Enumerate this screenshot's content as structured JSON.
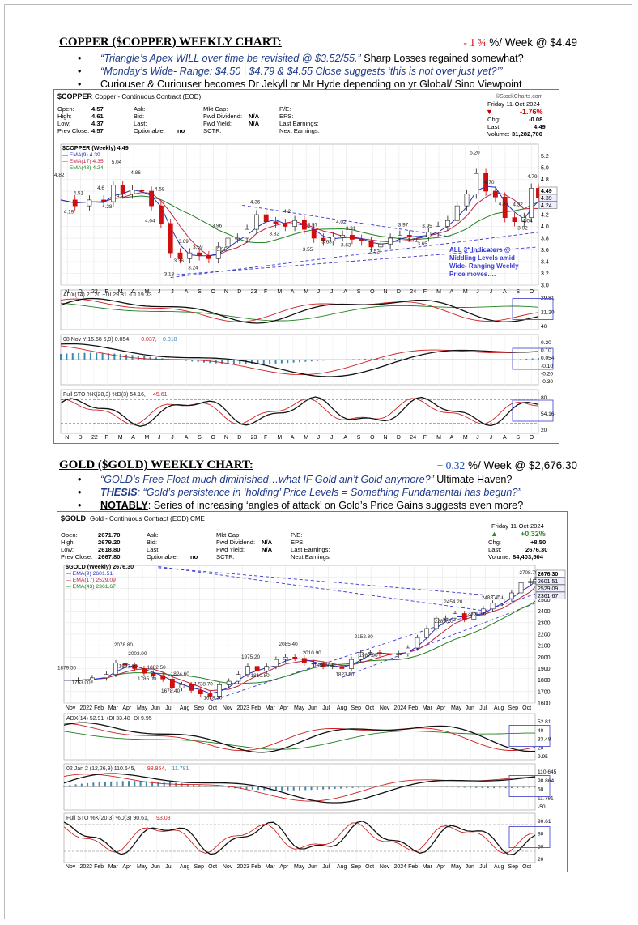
{
  "copper": {
    "title": "COPPER ($COPPER) WEEKLY CHART",
    "title_suffix": ":",
    "change_value": "- 1 ¾",
    "change_color": "#d01010",
    "change_rest": " %/ Week @ $4.49",
    "bullets": [
      {
        "italic": "“Triangle’s Apex WILL over time be revisited @ $3.52/55.”",
        "plain": "   Sharp Losses regained somewhat?"
      },
      {
        "italic": "“Monday’s Wide- Range: $4.50 | $4.79 & $4.55 Close suggests ‘this is not over just yet?’”",
        "plain": ""
      },
      {
        "italic": "",
        "plain": "Curiouser & Curiouser becomes Dr Jekyll or Mr Hyde depending on yr Global/ Sino Viewpoint"
      }
    ],
    "chart_header": {
      "symbol": "$COPPER",
      "desc": "Copper - Continuous Contract (EOD)",
      "brand": "©StockCharts.com",
      "col1": [
        [
          "Open:",
          "4.57"
        ],
        [
          "High:",
          "4.61"
        ],
        [
          "Low:",
          "4.37"
        ],
        [
          "Prev Close:",
          "4.57"
        ]
      ],
      "col2": [
        "Ask:",
        "Bid:",
        "Last:",
        "Optionable:"
      ],
      "optionable": "no",
      "col3": [
        [
          "Mkt Cap:",
          ""
        ],
        [
          "Fwd Dividend:",
          "N/A"
        ],
        [
          "Fwd Yield:",
          "N/A"
        ],
        [
          "SCTR:",
          ""
        ]
      ],
      "col4": [
        "P/E:",
        "EPS:",
        "Last Earnings:",
        "Next Earnings:"
      ],
      "date": "Friday  11-Oct-2024",
      "pct": "-1.76%",
      "chg_label": "Chg:",
      "chg": "-0.08",
      "last_label": "Last:",
      "last": "4.49",
      "vol_label": "Volume:",
      "vol": "31,282,700"
    },
    "legend": {
      "series": "$COPPER (Weekly) 4.49",
      "ema9": "EMA(9) 4.39",
      "ema17": "EMA(17) 4.35",
      "ema43": "EMA(43) 4.24"
    },
    "note": [
      "ALL 3* Indicators @",
      "Middling Levels amid",
      "Wide- Ranging Weekly",
      "Price moves…."
    ],
    "adx_label": "ADX(14) 21.20",
    "adx_di_plus": "+DI 29.81",
    "adx_di_minus": "-DI 19.33",
    "macd_label": "08 Nov Y:16.68 6,9) 0.054,",
    "macd_v1": "0.037,",
    "macd_v2": "0.018",
    "sto_label": "Full STO %K(20,3) %D(3) 54.16,",
    "sto_v2": "45.61",
    "x_labels": [
      "N",
      "D",
      "22",
      "F",
      "M",
      "A",
      "M",
      "J",
      "J",
      "A",
      "S",
      "O",
      "N",
      "D",
      "23",
      "F",
      "M",
      "A",
      "M",
      "J",
      "J",
      "A",
      "S",
      "O",
      "N",
      "D",
      "24",
      "F",
      "M",
      "A",
      "M",
      "J",
      "J",
      "A",
      "S",
      "O"
    ]
  },
  "gold": {
    "title": "GOLD ($GOLD) WEEKLY CHART:",
    "change_value": "+ 0.32",
    "change_color": "#1a4fb0",
    "change_rest": " %/ Week @ $2,676.30",
    "bullets": [
      {
        "lead": "",
        "italic": "“GOLD’s Free Float much diminished…what IF Gold ain’t Gold anymore?”",
        "plain": "     Ultimate Haven?"
      },
      {
        "lead": "THESIS",
        "italic": ": “Gold’s persistence in ‘holding’ Price Levels = Something Fundamental has begun?”",
        "plain": ""
      },
      {
        "lead": "NOTABLY",
        "italic": "",
        "plain": ": Series of increasing ‘angles of attack’ on Gold’s Price Gains suggests even more?"
      }
    ],
    "chart_header": {
      "symbol": "$GOLD",
      "desc": "Gold - Continuous Contract (EOD) CME",
      "col1": [
        [
          "Open:",
          "2671.70"
        ],
        [
          "High:",
          "2679.20"
        ],
        [
          "Low:",
          "2618.80"
        ],
        [
          "Prev Close:",
          "2667.80"
        ]
      ],
      "col2": [
        "Ask:",
        "Bid:",
        "Last:",
        "Optionable:"
      ],
      "optionable": "no",
      "col3": [
        [
          "Mkt Cap:",
          ""
        ],
        [
          "Fwd Dividend:",
          "N/A"
        ],
        [
          "Fwd Yield:",
          "N/A"
        ],
        [
          "SCTR:",
          ""
        ]
      ],
      "col4": [
        "P/E:",
        "EPS:",
        "Last Earnings:",
        "Next Earnings:"
      ],
      "date": "Friday  11-Oct-2024",
      "pct": "+0.32%",
      "chg_label": "Chg:",
      "chg": "+8.50",
      "last_label": "Last:",
      "last": "2676.30",
      "vol_label": "Volume:",
      "vol": "84,403,504"
    },
    "legend": {
      "series": "$GOLD (Weekly) 2676.30",
      "ema9": "EMA(9) 2601.51",
      "ema17": "EMA(17) 2529.09",
      "ema43": "EMA(43) 2361.67"
    },
    "adx_label": "ADX(14) 52.91",
    "adx_di_plus": "+DI 33.48",
    "adx_di_minus": "-DI 9.95",
    "macd_label": "02 Jan 2 (12,26,9) 110.645,",
    "macd_v1": "98.864,",
    "macd_v2": "11.781",
    "sto_label": "Full STO %K(20,3) %D(3) 90.61,",
    "sto_v2": "93.08",
    "x_labels": [
      "Nov",
      "2022",
      "Feb",
      "Mar",
      "Apr",
      "May",
      "Jun",
      "Jul",
      "Aug",
      "Sep",
      "Oct",
      "Nov",
      "2023",
      "Feb",
      "Mar",
      "Apr",
      "May",
      "Jun",
      "Jul",
      "Aug",
      "Sep",
      "Oct",
      "Nov",
      "2024",
      "Feb",
      "Mar",
      "Apr",
      "May",
      "Jun",
      "Jul",
      "Aug",
      "Sep",
      "Oct"
    ]
  },
  "chart_data": [
    {
      "type": "line",
      "title": "$COPPER (Weekly) 4.49",
      "ylim": [
        3.0,
        5.4
      ],
      "yticks": [
        "5.2",
        "5.0",
        "4.8",
        "4.6",
        "4.4",
        "4.2",
        "4.0",
        "3.8",
        "3.6",
        "3.4",
        "3.2",
        "3.0"
      ],
      "right_labels": [
        "4.49",
        "4.39",
        "4.24"
      ],
      "annotations": [
        {
          "t": 0.0,
          "v": 4.82,
          "label": "4.82"
        },
        {
          "t": 0.04,
          "v": 4.51,
          "label": "4.51"
        },
        {
          "t": 0.02,
          "v": 4.19,
          "label": "4.19"
        },
        {
          "t": 0.09,
          "v": 4.6,
          "label": "4.6"
        },
        {
          "t": 0.12,
          "v": 5.04,
          "label": "5.04"
        },
        {
          "t": 0.13,
          "v": 4.47,
          "label": "4.47"
        },
        {
          "t": 0.1,
          "v": 4.28,
          "label": "4.28"
        },
        {
          "t": 0.16,
          "v": 4.86,
          "label": "4.86"
        },
        {
          "t": 0.21,
          "v": 4.58,
          "label": "4.58"
        },
        {
          "t": 0.19,
          "v": 4.04,
          "label": "4.04"
        },
        {
          "t": 0.26,
          "v": 3.69,
          "label": "3.69"
        },
        {
          "t": 0.29,
          "v": 3.59,
          "label": "3.59"
        },
        {
          "t": 0.25,
          "v": 3.36,
          "label": "3.36"
        },
        {
          "t": 0.23,
          "v": 3.13,
          "label": "3.13"
        },
        {
          "t": 0.28,
          "v": 3.24,
          "label": "3.24"
        },
        {
          "t": 0.34,
          "v": 3.55,
          "label": "3.55"
        },
        {
          "t": 0.33,
          "v": 3.96,
          "label": "3.96"
        },
        {
          "t": 0.41,
          "v": 4.36,
          "label": "4.36"
        },
        {
          "t": 0.48,
          "v": 4.2,
          "label": "4.2"
        },
        {
          "t": 0.45,
          "v": 3.82,
          "label": "3.82"
        },
        {
          "t": 0.53,
          "v": 3.97,
          "label": "3.97"
        },
        {
          "t": 0.52,
          "v": 3.55,
          "label": "3.55"
        },
        {
          "t": 0.56,
          "v": 3.68,
          "label": "3.68"
        },
        {
          "t": 0.59,
          "v": 4.02,
          "label": "4.02"
        },
        {
          "t": 0.6,
          "v": 3.63,
          "label": "3.63"
        },
        {
          "t": 0.61,
          "v": 3.91,
          "label": "3.91"
        },
        {
          "t": 0.66,
          "v": 3.52,
          "label": "3.52"
        },
        {
          "t": 0.72,
          "v": 3.97,
          "label": "3.97"
        },
        {
          "t": 0.74,
          "v": 3.71,
          "label": "3.71"
        },
        {
          "t": 0.77,
          "v": 3.95,
          "label": "3.95"
        },
        {
          "t": 0.76,
          "v": 3.65,
          "label": "3.65"
        },
        {
          "t": 0.87,
          "v": 5.2,
          "label": "5.20"
        },
        {
          "t": 0.9,
          "v": 4.7,
          "label": "4.70"
        },
        {
          "t": 0.93,
          "v": 4.33,
          "label": "4.33"
        },
        {
          "t": 0.96,
          "v": 4.32,
          "label": "4.32"
        },
        {
          "t": 0.99,
          "v": 4.79,
          "label": "4.79"
        },
        {
          "t": 0.98,
          "v": 4.04,
          "label": "4.04"
        },
        {
          "t": 0.97,
          "v": 3.92,
          "label": "3.92"
        }
      ],
      "points": [
        [
          0.0,
          4.45
        ],
        [
          0.03,
          4.35
        ],
        [
          0.06,
          4.45
        ],
        [
          0.09,
          4.42
        ],
        [
          0.11,
          4.7
        ],
        [
          0.13,
          4.55
        ],
        [
          0.15,
          4.62
        ],
        [
          0.17,
          4.6
        ],
        [
          0.19,
          4.35
        ],
        [
          0.21,
          4.05
        ],
        [
          0.23,
          3.55
        ],
        [
          0.25,
          3.45
        ],
        [
          0.27,
          3.55
        ],
        [
          0.29,
          3.5
        ],
        [
          0.31,
          3.45
        ],
        [
          0.33,
          3.65
        ],
        [
          0.35,
          3.8
        ],
        [
          0.37,
          3.8
        ],
        [
          0.39,
          3.95
        ],
        [
          0.41,
          4.2
        ],
        [
          0.43,
          4.08
        ],
        [
          0.45,
          4.05
        ],
        [
          0.47,
          4.0
        ],
        [
          0.49,
          4.1
        ],
        [
          0.51,
          3.95
        ],
        [
          0.53,
          3.8
        ],
        [
          0.55,
          3.75
        ],
        [
          0.57,
          3.82
        ],
        [
          0.59,
          3.85
        ],
        [
          0.61,
          3.78
        ],
        [
          0.63,
          3.75
        ],
        [
          0.65,
          3.65
        ],
        [
          0.67,
          3.7
        ],
        [
          0.69,
          3.8
        ],
        [
          0.71,
          3.85
        ],
        [
          0.73,
          3.82
        ],
        [
          0.75,
          3.82
        ],
        [
          0.77,
          3.9
        ],
        [
          0.79,
          4.0
        ],
        [
          0.81,
          4.1
        ],
        [
          0.83,
          4.35
        ],
        [
          0.85,
          4.55
        ],
        [
          0.87,
          4.9
        ],
        [
          0.89,
          4.6
        ],
        [
          0.91,
          4.5
        ],
        [
          0.93,
          4.15
        ],
        [
          0.95,
          4.08
        ],
        [
          0.97,
          4.15
        ],
        [
          0.985,
          4.65
        ],
        [
          1.0,
          4.49
        ]
      ]
    },
    {
      "type": "line",
      "title": "$GOLD (Weekly) 2676.30",
      "ylim": [
        1600,
        2800
      ],
      "yticks": [
        "2700",
        "2600",
        "2500",
        "2400",
        "2300",
        "2200",
        "2100",
        "2000",
        "1900",
        "1800",
        "1700",
        "1600"
      ],
      "right_labels": [
        "2676.30",
        "2601.51",
        "2529.09",
        "2361.67"
      ],
      "annotations": [
        {
          "t": 0.0,
          "v": 1879.5,
          "label": "1879.50"
        },
        {
          "t": 0.03,
          "v": 1753.0,
          "label": "1753.00"
        },
        {
          "t": 0.12,
          "v": 2078.8,
          "label": "2078.80"
        },
        {
          "t": 0.15,
          "v": 2003.0,
          "label": "2003.00"
        },
        {
          "t": 0.13,
          "v": 1893.2,
          "label": "1893.20"
        },
        {
          "t": 0.19,
          "v": 1882.5,
          "label": "1882.50"
        },
        {
          "t": 0.17,
          "v": 1785.0,
          "label": "1785.00"
        },
        {
          "t": 0.24,
          "v": 1824.6,
          "label": "1824.60"
        },
        {
          "t": 0.22,
          "v": 1678.4,
          "label": "1678.40"
        },
        {
          "t": 0.29,
          "v": 1738.7,
          "label": "1738.70"
        },
        {
          "t": 0.31,
          "v": 1618.3,
          "label": "1618.30"
        },
        {
          "t": 0.39,
          "v": 1975.2,
          "label": "1975.20"
        },
        {
          "t": 0.41,
          "v": 1810.8,
          "label": "1810.80"
        },
        {
          "t": 0.47,
          "v": 2085.4,
          "label": "2085.40"
        },
        {
          "t": 0.52,
          "v": 2010.9,
          "label": "2010.90"
        },
        {
          "t": 0.54,
          "v": 1900.6,
          "label": "1900.60"
        },
        {
          "t": 0.63,
          "v": 2152.3,
          "label": "2152.30"
        },
        {
          "t": 0.64,
          "v": 1987.9,
          "label": "1987.90"
        },
        {
          "t": 0.59,
          "v": 1823.5,
          "label": "1823.50"
        },
        {
          "t": 0.82,
          "v": 2454.2,
          "label": "2454.20"
        },
        {
          "t": 0.8,
          "v": 2285.2,
          "label": "2285.20"
        },
        {
          "t": 0.9,
          "v": 2488.4,
          "label": "2488.40"
        },
        {
          "t": 0.87,
          "v": 2351.9,
          "label": "2351.90"
        },
        {
          "t": 0.98,
          "v": 2708.7,
          "label": "2708.70"
        }
      ],
      "points": [
        [
          0.0,
          1800
        ],
        [
          0.03,
          1800
        ],
        [
          0.06,
          1820
        ],
        [
          0.09,
          1850
        ],
        [
          0.11,
          1950
        ],
        [
          0.13,
          1930
        ],
        [
          0.15,
          1900
        ],
        [
          0.17,
          1860
        ],
        [
          0.19,
          1840
        ],
        [
          0.21,
          1810
        ],
        [
          0.23,
          1730
        ],
        [
          0.25,
          1760
        ],
        [
          0.27,
          1710
        ],
        [
          0.29,
          1680
        ],
        [
          0.31,
          1660
        ],
        [
          0.33,
          1760
        ],
        [
          0.35,
          1790
        ],
        [
          0.37,
          1850
        ],
        [
          0.39,
          1920
        ],
        [
          0.41,
          1880
        ],
        [
          0.43,
          1920
        ],
        [
          0.45,
          1980
        ],
        [
          0.47,
          2000
        ],
        [
          0.49,
          1990
        ],
        [
          0.51,
          1950
        ],
        [
          0.53,
          1940
        ],
        [
          0.55,
          1920
        ],
        [
          0.57,
          1920
        ],
        [
          0.59,
          1900
        ],
        [
          0.61,
          1980
        ],
        [
          0.63,
          2040
        ],
        [
          0.65,
          2040
        ],
        [
          0.67,
          2030
        ],
        [
          0.69,
          2020
        ],
        [
          0.71,
          2030
        ],
        [
          0.73,
          2080
        ],
        [
          0.75,
          2170
        ],
        [
          0.77,
          2250
        ],
        [
          0.79,
          2340
        ],
        [
          0.81,
          2340
        ],
        [
          0.83,
          2380
        ],
        [
          0.85,
          2330
        ],
        [
          0.87,
          2390
        ],
        [
          0.89,
          2420
        ],
        [
          0.91,
          2470
        ],
        [
          0.93,
          2510
        ],
        [
          0.95,
          2560
        ],
        [
          0.97,
          2650
        ],
        [
          0.99,
          2660
        ],
        [
          1.0,
          2676
        ]
      ]
    }
  ]
}
